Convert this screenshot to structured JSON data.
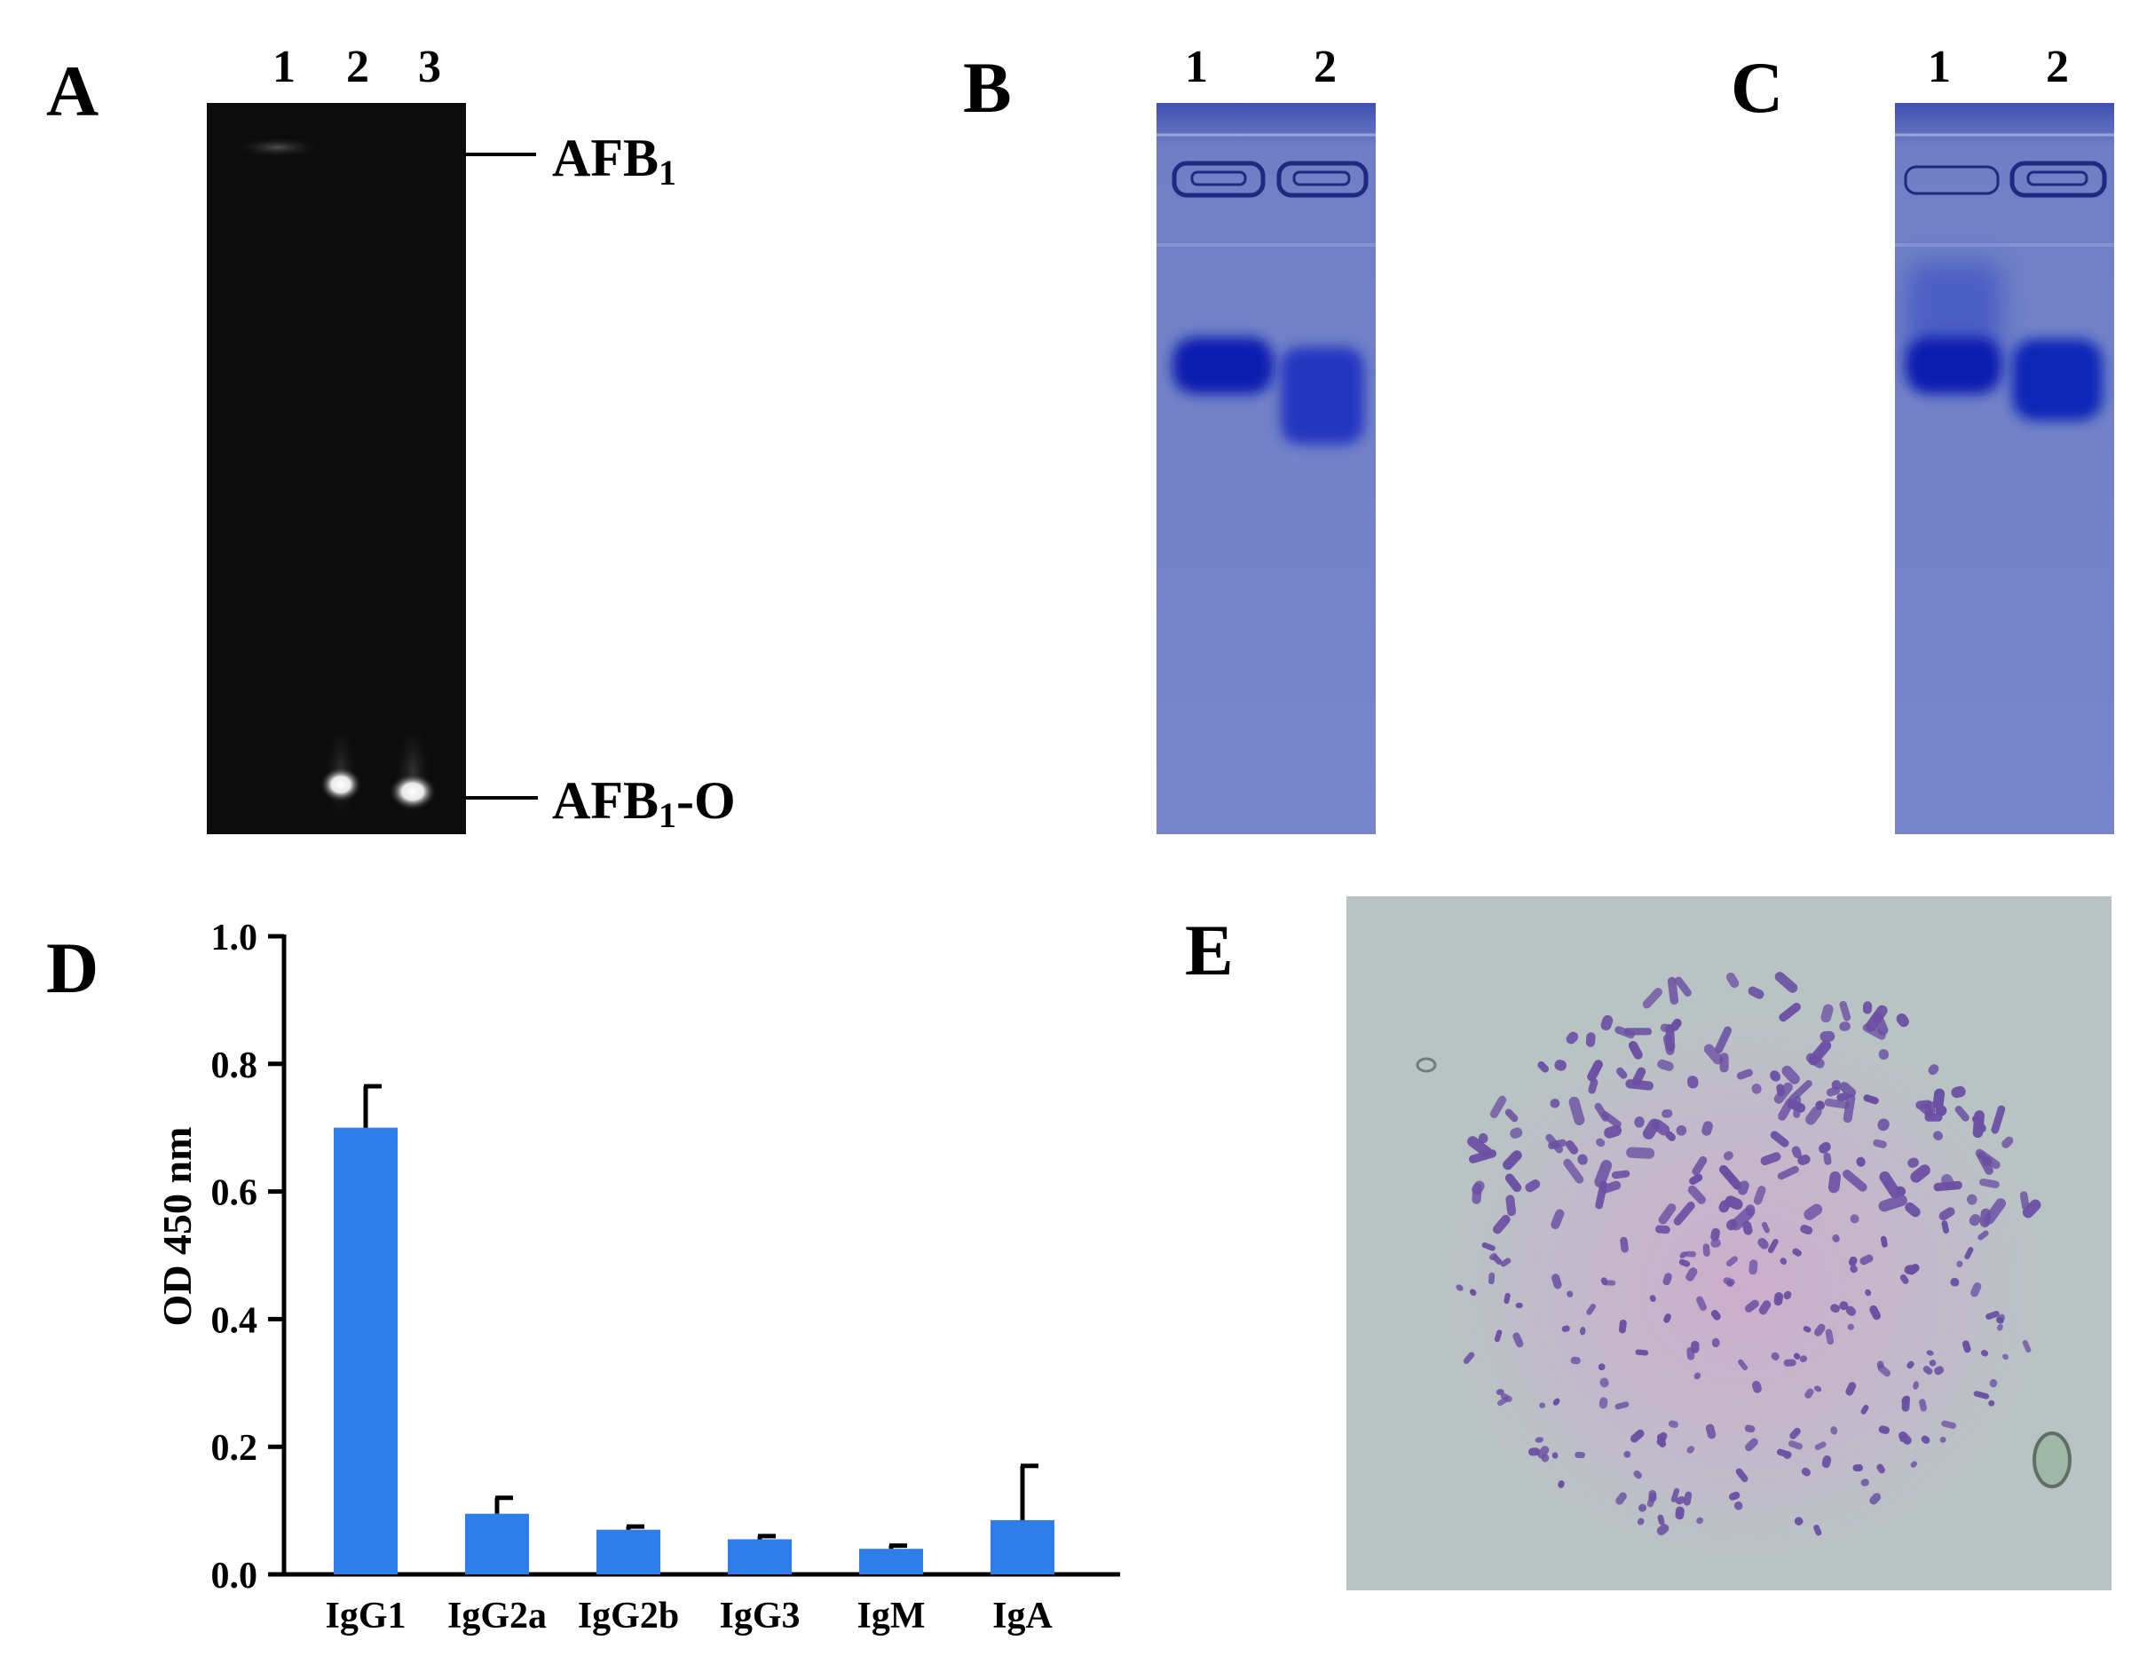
{
  "panels": {
    "A": {
      "letter": "A",
      "lanes": [
        "1",
        "2",
        "3"
      ],
      "labels": {
        "top_main": "AFB",
        "top_sub": "1",
        "bottom_main": "AFB",
        "bottom_sub": "1",
        "bottom_suffix": "-O"
      }
    },
    "B": {
      "letter": "B",
      "lanes": [
        "1",
        "2"
      ]
    },
    "C": {
      "letter": "C",
      "lanes": [
        "1",
        "2"
      ]
    },
    "D": {
      "letter": "D"
    },
    "E": {
      "letter": "E"
    }
  },
  "chart_data": {
    "type": "bar",
    "categories": [
      "IgG1",
      "IgG2a",
      "IgG2b",
      "IgG3",
      "IgM",
      "IgA"
    ],
    "values": [
      0.7,
      0.095,
      0.07,
      0.055,
      0.04,
      0.085
    ],
    "errors": [
      0.065,
      0.025,
      0.005,
      0.005,
      0.005,
      0.085
    ],
    "ylabel": "OD 450 nm",
    "ylim": [
      0,
      1.0
    ],
    "yticks": [
      "0.0",
      "0.2",
      "0.4",
      "0.6",
      "0.8",
      "1.0"
    ],
    "bar_color": "#2f7de8"
  },
  "colors": {
    "tlc_background": "#0c0c0c",
    "gel_stain": "#6f7fc6",
    "gel_band": "#0a1fb0",
    "micrograph_bg": "#b9c3c4",
    "chromosome": "#6a4fa3"
  }
}
